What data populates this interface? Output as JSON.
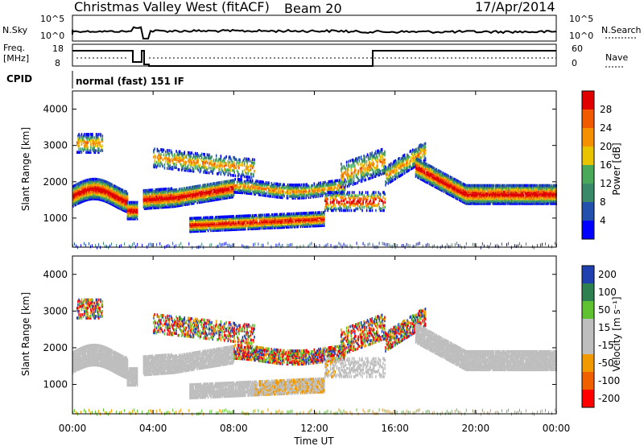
{
  "header": {
    "title": "Christmas Valley West (fitACF)",
    "beam": "Beam 20",
    "date": "17/Apr/2014"
  },
  "noise_panel": {
    "left_label": "N.Sky",
    "left_ticks": [
      "10^5",
      "10^0"
    ],
    "right_label": "N.Search",
    "right_ticks": [
      "10^5",
      "10^0"
    ]
  },
  "freq_panel": {
    "left_label_1": "Freq.",
    "left_label_2": "[MHz]",
    "left_ticks": [
      "18",
      "8"
    ],
    "right_label": "Nave",
    "right_ticks": [
      "60",
      "0"
    ]
  },
  "cpid": {
    "label": "CPID",
    "value": "normal (fast) 151 IF"
  },
  "colors": {
    "scale_power": [
      "#0000ff",
      "#2450ad",
      "#3a8a6a",
      "#4aa85a",
      "#e8c300",
      "#f59000",
      "#f05a00",
      "#e00000"
    ],
    "scale_velocity": [
      "#ff0000",
      "#f06000",
      "#f09a00",
      "#bebebe",
      "#bebebe",
      "#5fc030",
      "#2e8050",
      "#2040b0"
    ],
    "ground_scatter": "#bebebe"
  },
  "chart_data": [
    {
      "type": "heatmap",
      "panel": "power",
      "ylabel": "Slant Range [km]",
      "y_ticks": [
        "1000",
        "2000",
        "3000",
        "4000"
      ],
      "ylim": [
        200,
        4500
      ],
      "xlim": [
        0,
        24
      ],
      "colorbar_label": "Power [dB]",
      "colorbar_ticks": [
        "4",
        "8",
        "12",
        "16",
        "20",
        "24",
        "28"
      ]
    },
    {
      "type": "heatmap",
      "panel": "velocity",
      "ylabel": "Slant Range [km]",
      "y_ticks": [
        "1000",
        "2000",
        "3000",
        "4000"
      ],
      "ylim": [
        200,
        4500
      ],
      "xlim": [
        0,
        24
      ],
      "colorbar_label": "Velocity [m s⁻¹]",
      "colorbar_ticks": [
        "-200",
        "-100",
        "-50",
        "-15",
        "15",
        "50",
        "100",
        "200"
      ]
    }
  ],
  "x_axis": {
    "label": "Time UT",
    "ticks": [
      "00:00",
      "04:00",
      "08:00",
      "12:00",
      "16:00",
      "20:00",
      "00:00"
    ]
  }
}
